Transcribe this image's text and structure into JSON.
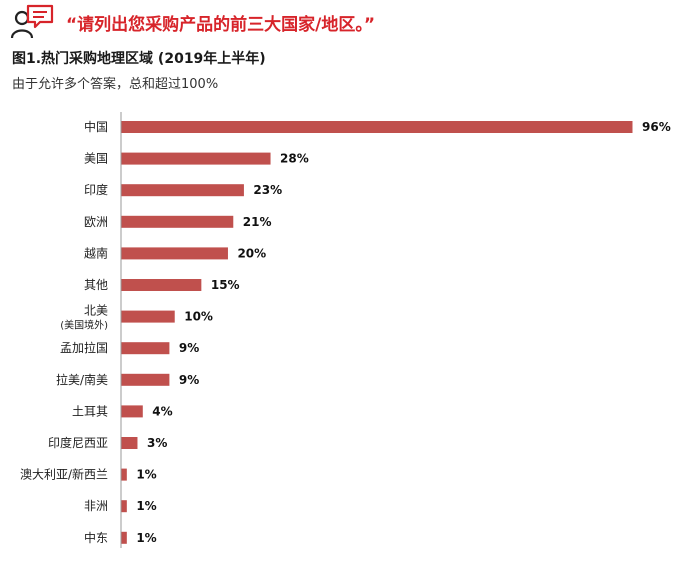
{
  "header": {
    "quote": "“请列出您采购产品的前三大国家/地区。”",
    "icon": "user-speech-icon",
    "accent_color": "#d7242a"
  },
  "chart_data": {
    "type": "bar",
    "orientation": "horizontal",
    "title": "图1.热门采购地理区域 (2019年上半年)",
    "subtitle": "由于允许多个答案，总和超过100%",
    "categories": [
      "中国",
      "美国",
      "印度",
      "欧洲",
      "越南",
      "其他",
      "北美",
      "孟加拉国",
      "拉美/南美",
      "土耳其",
      "印度尼西亚",
      "澳大利亚/新西兰",
      "非洲",
      "中东"
    ],
    "category_notes": {
      "北美": "(美国境外)"
    },
    "values": [
      96,
      28,
      23,
      21,
      20,
      15,
      10,
      9,
      9,
      4,
      3,
      1,
      1,
      1
    ],
    "value_labels": [
      "96%",
      "28%",
      "23%",
      "21%",
      "20%",
      "15%",
      "10%",
      "9%",
      "9%",
      "4%",
      "3%",
      "1%",
      "1%",
      "1%"
    ],
    "unit": "%",
    "xlim": [
      0,
      100
    ],
    "bar_color": "#c0504d",
    "grid": false,
    "legend": "none"
  }
}
